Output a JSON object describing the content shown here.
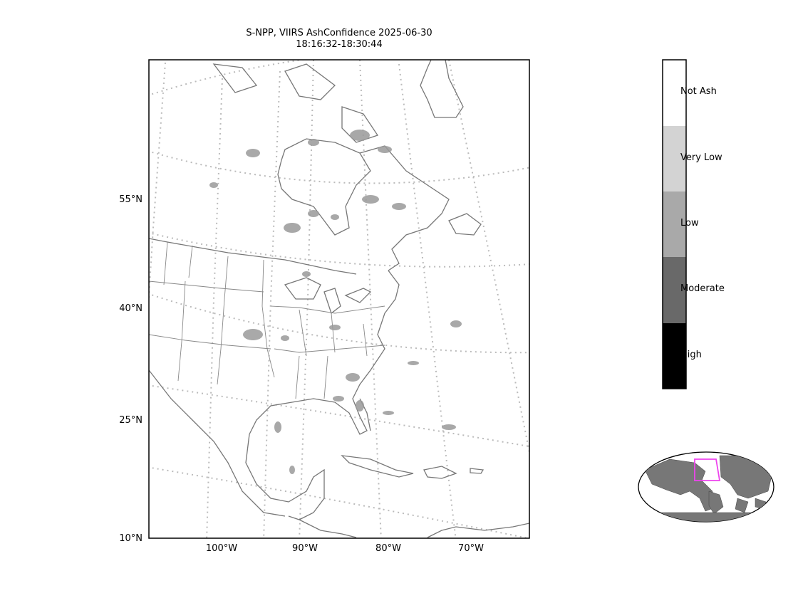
{
  "title": {
    "line1": "S-NPP, VIIRS AshConfidence 2025-06-30",
    "line2": "18:16:32-18:30:44"
  },
  "map": {
    "lat_labels": [
      "55°N",
      "40°N",
      "25°N",
      "10°N"
    ],
    "lon_labels": [
      "100°W",
      "90°W",
      "80°W",
      "70°W"
    ],
    "colors": {
      "coastline": "#777777",
      "graticule": "#bbbbbb",
      "ash_pixels": "#9a9a9a",
      "inset_land": "#777777",
      "inset_box": "#ee44ee"
    }
  },
  "colorbar": {
    "categories": [
      {
        "label": "Not Ash",
        "color": "#ffffff"
      },
      {
        "label": "Very Low",
        "color": "#d3d3d3"
      },
      {
        "label": "Low",
        "color": "#a9a9a9"
      },
      {
        "label": "Moderate",
        "color": "#696969"
      },
      {
        "label": "High",
        "color": "#000000"
      }
    ]
  }
}
